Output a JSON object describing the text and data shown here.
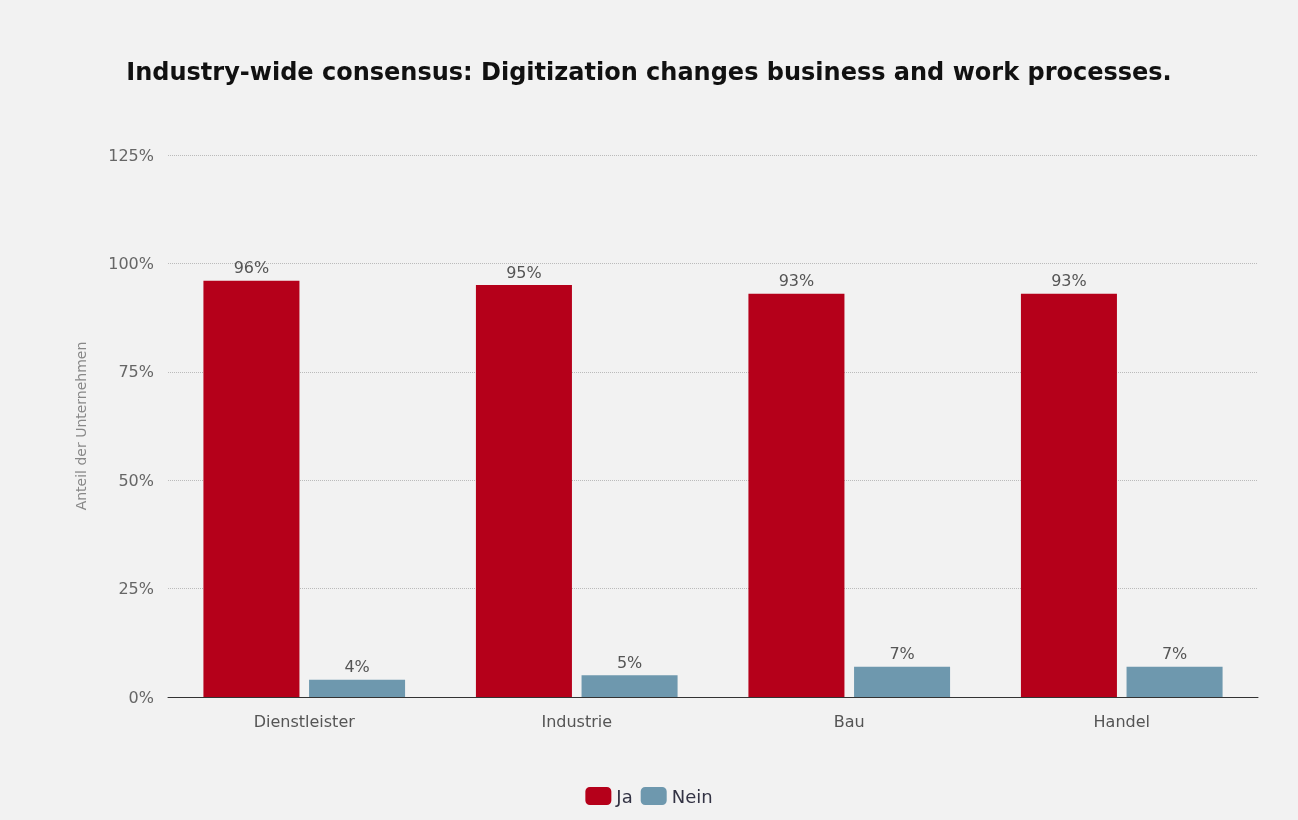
{
  "chart_data": {
    "type": "bar",
    "title": "Industry-wide consensus: Digitization changes business and work processes.",
    "ylabel": "Anteil der Unternehmen",
    "categories": [
      "Dienstleister",
      "Industrie",
      "Bau",
      "Handel"
    ],
    "series": [
      {
        "name": "Ja",
        "color": "#b5001a",
        "values": [
          96,
          95,
          93,
          93
        ],
        "value_labels": [
          "96%",
          "95%",
          "93%",
          "93%"
        ]
      },
      {
        "name": "Nein",
        "color": "#6e98ae",
        "values": [
          4,
          5,
          7,
          7
        ],
        "value_labels": [
          "4%",
          "5%",
          "7%",
          "7%"
        ]
      }
    ],
    "ylim": [
      0,
      125
    ],
    "yticks": [
      {
        "value": 0,
        "label": "0%"
      },
      {
        "value": 25,
        "label": "25%"
      },
      {
        "value": 50,
        "label": "50%"
      },
      {
        "value": 75,
        "label": "75%"
      },
      {
        "value": 100,
        "label": "100%"
      },
      {
        "value": 125,
        "label": "125%"
      }
    ],
    "grid": "y",
    "legend": "bottom"
  }
}
